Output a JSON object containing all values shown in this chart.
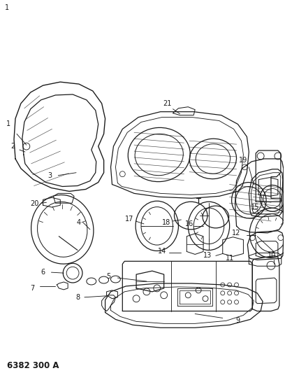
{
  "title": "6382 300 A",
  "bg_color": "#ffffff",
  "line_color": "#1a1a1a",
  "lw": 0.9,
  "fig_width": 4.08,
  "fig_height": 5.33,
  "dpi": 100
}
